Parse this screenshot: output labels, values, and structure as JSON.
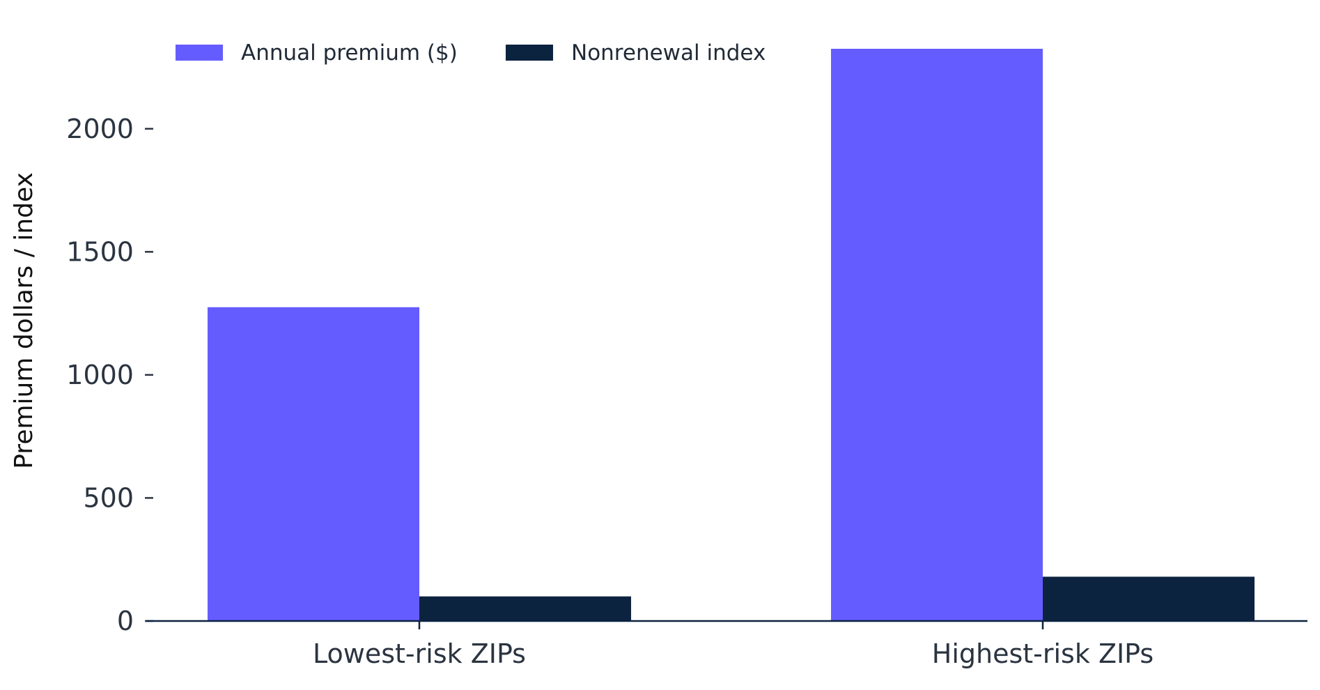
{
  "chart_data": {
    "type": "bar",
    "title": "",
    "xlabel": "",
    "ylabel": "Premium dollars / index",
    "categories": [
      "Lowest-risk ZIPs",
      "Highest-risk ZIPs"
    ],
    "series": [
      {
        "name": "Annual premium ($)",
        "values": [
          1275,
          2325
        ],
        "color": "#655cff"
      },
      {
        "name": "Nonrenewal index",
        "values": [
          100,
          180
        ],
        "color": "#0c2340"
      }
    ],
    "ylim": [
      0,
      2325
    ],
    "yticks": [
      0,
      500,
      1000,
      1500,
      2000
    ],
    "grid": false,
    "legend": "top-left"
  }
}
